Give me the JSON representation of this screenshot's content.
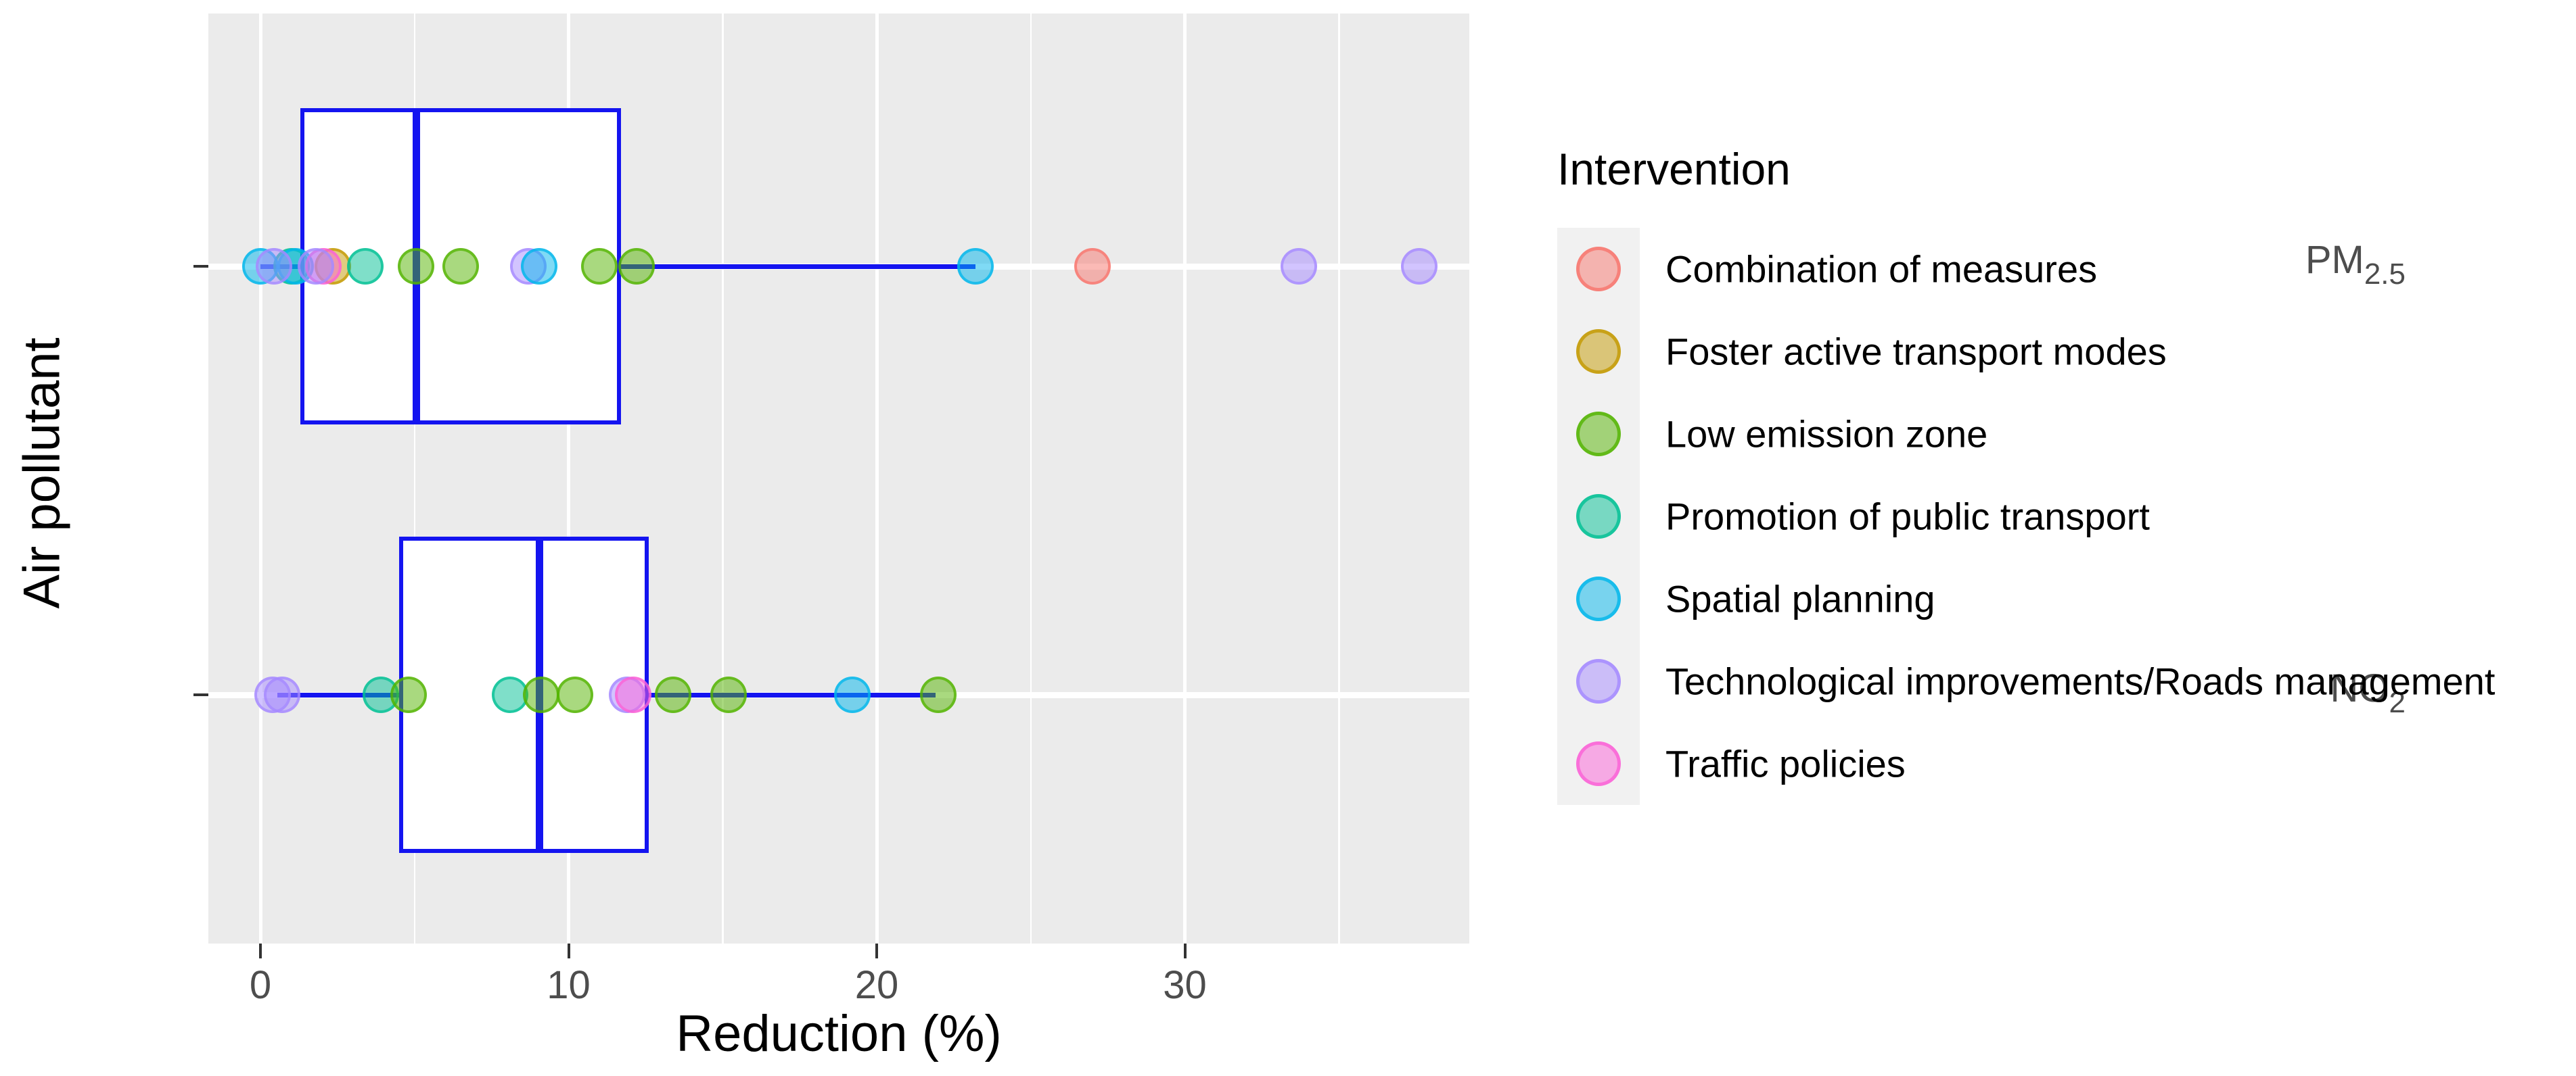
{
  "chart_data": {
    "type": "boxplot_with_jittered_points_horizontal",
    "xlabel": "Reduction (%)",
    "ylabel": "Air pollutant",
    "x_axis": {
      "major_ticks": [
        0,
        10,
        20,
        30
      ],
      "minor_ticks": [
        5,
        15,
        25,
        35
      ],
      "range": [
        -1.7,
        39.2
      ],
      "grid": "white on grey panel"
    },
    "categories": [
      {
        "id": "pm25",
        "label_main": "PM",
        "label_sub": "2.5"
      },
      {
        "id": "no2",
        "label_main": "NO",
        "label_sub": "2"
      }
    ],
    "interventions": {
      "combination": {
        "label": "Combination of measures",
        "color": "#F8766D"
      },
      "foster": {
        "label": "Foster active transport modes",
        "color": "#C49A00"
      },
      "low": {
        "label": "Low emission zone",
        "color": "#53B400"
      },
      "promotion": {
        "label": "Promotion of public transport",
        "color": "#00C094"
      },
      "spatial": {
        "label": "Spatial planning",
        "color": "#00B6EB"
      },
      "tech": {
        "label": "Technological improvements/Roads management",
        "color": "#A58AFF"
      },
      "traffic": {
        "label": "Traffic policies",
        "color": "#FB61D7"
      }
    },
    "boxes": [
      {
        "category": "pm25",
        "whisker_low": 0.0,
        "q1": 1.3,
        "median": 5.05,
        "q3": 11.7,
        "whisker_high": 23.2,
        "color": "#1414F0"
      },
      {
        "category": "no2",
        "whisker_low": 0.55,
        "q1": 4.5,
        "median": 9.05,
        "q3": 12.6,
        "whisker_high": 21.9,
        "color": "#1414F0"
      }
    ],
    "points": [
      {
        "category": "pm25",
        "value": 1.0,
        "intervention": "promotion"
      },
      {
        "category": "pm25",
        "value": 0.0,
        "intervention": "spatial"
      },
      {
        "category": "pm25",
        "value": 1.15,
        "intervention": "spatial"
      },
      {
        "category": "pm25",
        "value": 2.35,
        "intervention": "foster"
      },
      {
        "category": "pm25",
        "value": 2.05,
        "intervention": "traffic"
      },
      {
        "category": "pm25",
        "value": 0.45,
        "intervention": "tech"
      },
      {
        "category": "pm25",
        "value": 1.8,
        "intervention": "tech"
      },
      {
        "category": "pm25",
        "value": 3.4,
        "intervention": "promotion"
      },
      {
        "category": "pm25",
        "value": 5.05,
        "intervention": "low"
      },
      {
        "category": "pm25",
        "value": 6.5,
        "intervention": "low"
      },
      {
        "category": "pm25",
        "value": 8.7,
        "intervention": "tech"
      },
      {
        "category": "pm25",
        "value": 9.05,
        "intervention": "spatial"
      },
      {
        "category": "pm25",
        "value": 11.0,
        "intervention": "low"
      },
      {
        "category": "pm25",
        "value": 12.2,
        "intervention": "low"
      },
      {
        "category": "pm25",
        "value": 23.2,
        "intervention": "spatial"
      },
      {
        "category": "pm25",
        "value": 27.0,
        "intervention": "combination"
      },
      {
        "category": "pm25",
        "value": 33.7,
        "intervention": "tech"
      },
      {
        "category": "pm25",
        "value": 37.6,
        "intervention": "tech"
      },
      {
        "category": "no2",
        "value": 0.4,
        "intervention": "tech"
      },
      {
        "category": "no2",
        "value": 0.7,
        "intervention": "tech"
      },
      {
        "category": "no2",
        "value": 3.9,
        "intervention": "promotion"
      },
      {
        "category": "no2",
        "value": 4.8,
        "intervention": "low"
      },
      {
        "category": "no2",
        "value": 8.1,
        "intervention": "promotion"
      },
      {
        "category": "no2",
        "value": 9.1,
        "intervention": "low"
      },
      {
        "category": "no2",
        "value": 10.2,
        "intervention": "low"
      },
      {
        "category": "no2",
        "value": 11.9,
        "intervention": "tech"
      },
      {
        "category": "no2",
        "value": 12.1,
        "intervention": "traffic"
      },
      {
        "category": "no2",
        "value": 13.4,
        "intervention": "low"
      },
      {
        "category": "no2",
        "value": 15.2,
        "intervention": "low"
      },
      {
        "category": "no2",
        "value": 19.2,
        "intervention": "spatial"
      },
      {
        "category": "no2",
        "value": 22.0,
        "intervention": "low"
      }
    ]
  },
  "legend": {
    "title": "Intervention",
    "items": [
      {
        "intervention": "combination"
      },
      {
        "intervention": "foster"
      },
      {
        "intervention": "low"
      },
      {
        "intervention": "promotion"
      },
      {
        "intervention": "spatial"
      },
      {
        "intervention": "tech"
      },
      {
        "intervention": "traffic"
      }
    ]
  },
  "colors": {
    "panel_background": "#EBEBEB",
    "gridline": "#FFFFFF",
    "box_stroke": "#1414F0",
    "axis_text": "#4D4D4D",
    "legend_key_background": "#F1F1F1"
  }
}
